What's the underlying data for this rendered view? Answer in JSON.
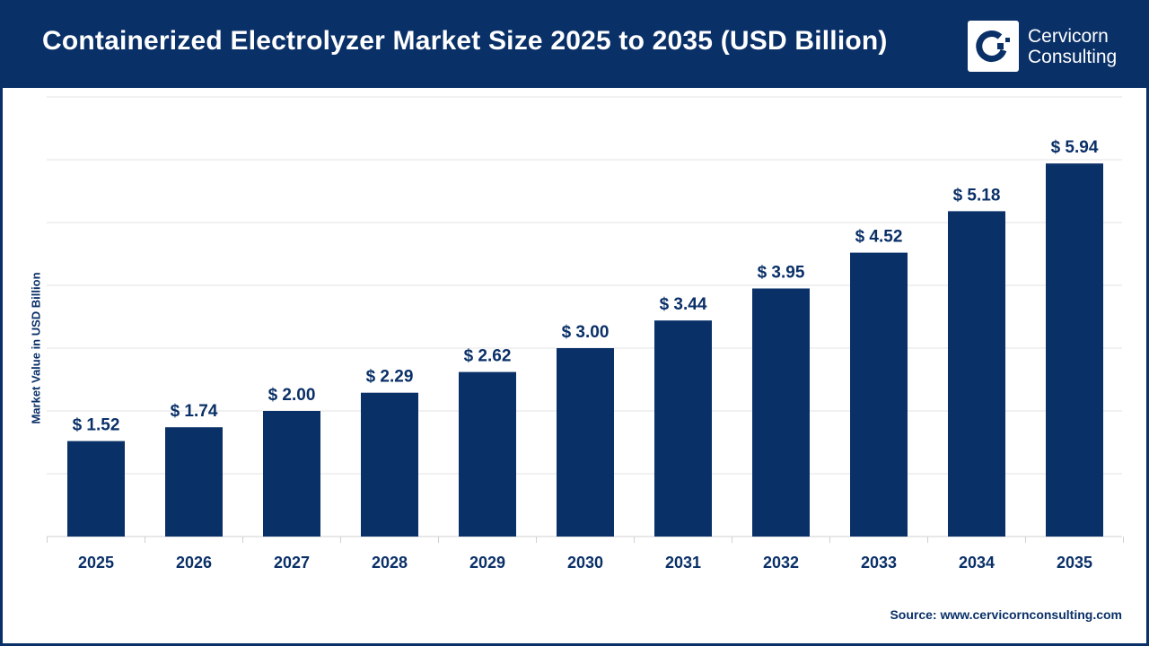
{
  "header": {
    "title": "Containerized Electrolyzer Market Size 2025 to 2035 (USD Billion)"
  },
  "logo": {
    "line1": "Cervicorn",
    "line2": "Consulting"
  },
  "source": "Source: www.cervicornconsulting.com",
  "colors": {
    "bar": "#0a3068",
    "header": "#0a3068",
    "grid": "#e3e3e3"
  },
  "chart_data": {
    "type": "bar",
    "title": "Containerized Electrolyzer Market Size 2025 to 2035 (USD Billion)",
    "xlabel": "",
    "ylabel": "Market Value in USD Billion",
    "categories": [
      "2025",
      "2026",
      "2027",
      "2028",
      "2029",
      "2030",
      "2031",
      "2032",
      "2033",
      "2034",
      "2035"
    ],
    "values": [
      1.52,
      1.74,
      2.0,
      2.29,
      2.62,
      3.0,
      3.44,
      3.95,
      4.52,
      5.18,
      5.94
    ],
    "data_labels": [
      "$ 1.52",
      "$ 1.74",
      "$ 2.00",
      "$ 2.29",
      "$ 2.62",
      "$ 3.00",
      "$ 3.44",
      "$ 3.95",
      "$ 4.52",
      "$ 5.18",
      "$ 5.94"
    ],
    "ylim": [
      0,
      7
    ],
    "grid": true,
    "y_tick_labels_shown": false
  }
}
